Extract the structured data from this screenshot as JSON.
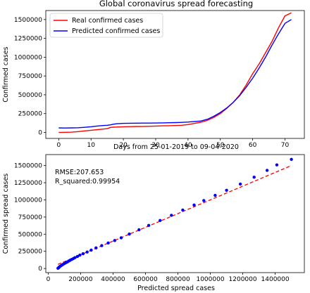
{
  "chart_data": [
    {
      "type": "line",
      "title": "Global coronavirus spread forecasting",
      "xlabel": "Days from 25-01-2019 to 09-04-2020",
      "ylabel": "Confirmed cases",
      "xlim": [
        -4,
        76
      ],
      "ylim": [
        -80000,
        1620000
      ],
      "xticks": [
        0,
        10,
        20,
        30,
        40,
        50,
        60,
        70
      ],
      "yticks": [
        0,
        250000,
        500000,
        750000,
        1000000,
        1250000,
        1500000
      ],
      "grid": false,
      "legend_position": "top-left",
      "x": [
        0,
        2,
        4,
        6,
        8,
        10,
        12,
        14,
        15,
        16,
        17,
        18,
        20,
        22,
        24,
        26,
        28,
        30,
        32,
        34,
        36,
        38,
        40,
        42,
        44,
        46,
        48,
        50,
        52,
        54,
        56,
        58,
        60,
        62,
        64,
        66,
        68,
        70,
        72
      ],
      "series": [
        {
          "name": "Real confirmed cases",
          "color": "#ff0000",
          "values": [
            600,
            1300,
            3000,
            11000,
            20000,
            28000,
            37000,
            45000,
            50000,
            67000,
            69000,
            71000,
            75000,
            77000,
            79000,
            80000,
            82000,
            84000,
            87000,
            89000,
            91000,
            95000,
            104000,
            120000,
            135000,
            160000,
            200000,
            250000,
            320000,
            400000,
            500000,
            630000,
            780000,
            910000,
            1060000,
            1210000,
            1390000,
            1550000,
            1590000
          ]
        },
        {
          "name": "Predicted confirmed cases",
          "color": "#0000ff",
          "values": [
            60000,
            58000,
            60000,
            62000,
            68000,
            75000,
            85000,
            92000,
            95000,
            100000,
            110000,
            115000,
            120000,
            122000,
            123000,
            124000,
            124000,
            125000,
            126000,
            128000,
            130000,
            133000,
            138000,
            145000,
            152000,
            175000,
            215000,
            265000,
            325000,
            400000,
            490000,
            600000,
            720000,
            855000,
            1000000,
            1160000,
            1310000,
            1450000,
            1500000
          ]
        }
      ]
    },
    {
      "type": "scatter",
      "xlabel": "Predicted spread cases",
      "ylabel": "Confirmed spread cases",
      "xlim": [
        -15000,
        1580000
      ],
      "ylim": [
        -60000,
        1660000
      ],
      "xticks": [
        0,
        200000,
        400000,
        600000,
        800000,
        1000000,
        1200000,
        1400000
      ],
      "yticks": [
        0,
        250000,
        500000,
        750000,
        1000000,
        1250000,
        1500000
      ],
      "grid": false,
      "annotations": [
        "RMSE:207.653",
        "R_squared:0.99954"
      ],
      "points": {
        "color": "#0000ff",
        "x": [
          60000,
          62000,
          66000,
          70000,
          76000,
          82000,
          88000,
          95000,
          102000,
          110000,
          118000,
          126000,
          135000,
          145000,
          155000,
          165000,
          180000,
          195000,
          215000,
          240000,
          265000,
          295000,
          330000,
          370000,
          410000,
          450000,
          500000,
          560000,
          620000,
          690000,
          760000,
          830000,
          900000,
          960000,
          1030000,
          1100000,
          1185000,
          1270000,
          1350000,
          1410000,
          1500000
        ],
        "y": [
          3000,
          8000,
          16000,
          26000,
          36000,
          46000,
          56000,
          66000,
          76000,
          86000,
          96000,
          108000,
          120000,
          132000,
          145000,
          158000,
          175000,
          195000,
          215000,
          240000,
          268000,
          300000,
          333000,
          372000,
          408000,
          448000,
          502000,
          565000,
          628000,
          700000,
          775000,
          852000,
          925000,
          990000,
          1065000,
          1140000,
          1230000,
          1330000,
          1430000,
          1510000,
          1590000
        ]
      },
      "fit_line": {
        "color": "#ff0000",
        "style": "dashed",
        "x": [
          60000,
          1500000
        ],
        "y": [
          60000,
          1500000
        ]
      }
    }
  ]
}
